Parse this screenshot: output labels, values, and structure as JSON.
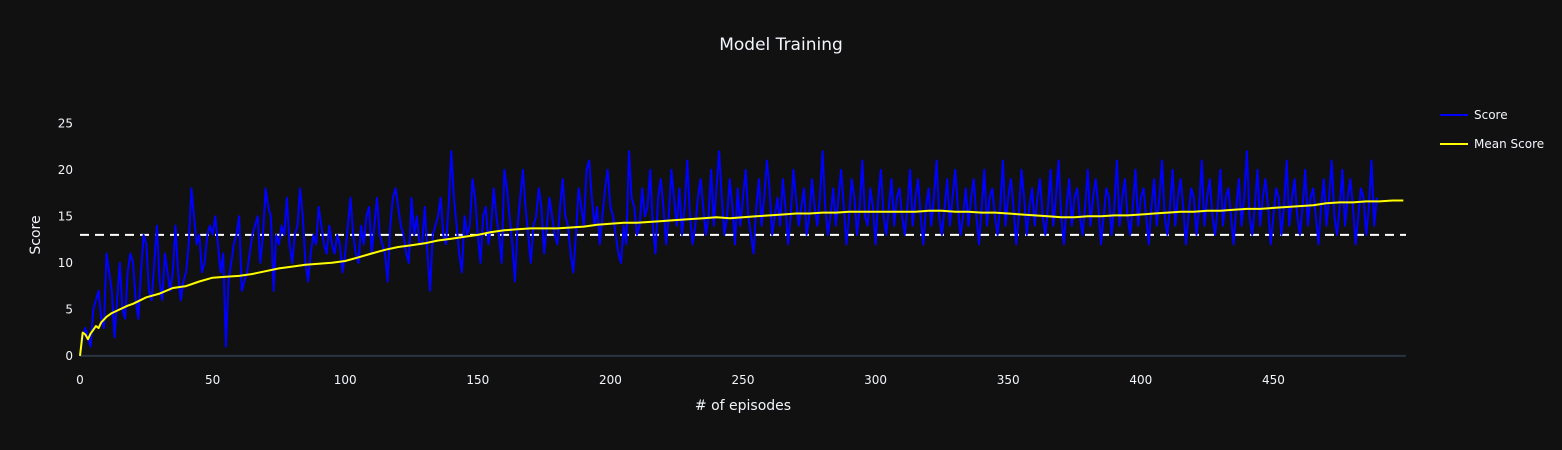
{
  "chart_data": {
    "type": "line",
    "title": "Model Training",
    "xlabel": "# of episodes",
    "ylabel": "Score",
    "xlim": [
      0,
      500
    ],
    "ylim": [
      -1.3,
      27.5
    ],
    "xticks": [
      0,
      50,
      100,
      150,
      200,
      250,
      300,
      350,
      400,
      450
    ],
    "yticks": [
      0,
      5,
      10,
      15,
      20,
      25
    ],
    "grid": false,
    "legend_position": "top-right",
    "threshold": {
      "value": 13,
      "style": "dashed",
      "color": "#ffffff"
    },
    "series": [
      {
        "name": "Score",
        "color": "#0000ff",
        "values": [
          0,
          2,
          3,
          2,
          1,
          5,
          6,
          7,
          4,
          3,
          11,
          9,
          7,
          2,
          6,
          10,
          5,
          4,
          9,
          11,
          10,
          6,
          4,
          9,
          13,
          12,
          7,
          6,
          10,
          14,
          8,
          6,
          11,
          9,
          7,
          9,
          14,
          9,
          6,
          8,
          9,
          12,
          18,
          15,
          12,
          13,
          9,
          10,
          13,
          14,
          13,
          15,
          12,
          9,
          11,
          1,
          8,
          10,
          12,
          13,
          15,
          7,
          8,
          9,
          11,
          13,
          14,
          15,
          10,
          13,
          18,
          16,
          15,
          7,
          13,
          12,
          14,
          13,
          17,
          12,
          10,
          13,
          14,
          18,
          15,
          10,
          8,
          11,
          13,
          12,
          16,
          14,
          12,
          11,
          14,
          12,
          11,
          13,
          12,
          9,
          11,
          14,
          17,
          13,
          11,
          10,
          14,
          12,
          15,
          16,
          11,
          14,
          17,
          13,
          12,
          11,
          8,
          14,
          17,
          18,
          16,
          14,
          13,
          11,
          10,
          17,
          13,
          15,
          12,
          12,
          16,
          11,
          7,
          13,
          14,
          15,
          17,
          13,
          12,
          16,
          22,
          17,
          14,
          11,
          9,
          15,
          13,
          14,
          19,
          17,
          13,
          10,
          15,
          16,
          12,
          14,
          18,
          15,
          13,
          10,
          20,
          18,
          15,
          12,
          8,
          14,
          17,
          20,
          16,
          13,
          10,
          14,
          15,
          18,
          16,
          11,
          14,
          17,
          15,
          13,
          12,
          16,
          19,
          15,
          14,
          11,
          9,
          13,
          18,
          16,
          14,
          20,
          21,
          17,
          14,
          16,
          12,
          15,
          18,
          20,
          16,
          15,
          13,
          11,
          10,
          14,
          12,
          22,
          17,
          16,
          13,
          14,
          18,
          15,
          16,
          20,
          14,
          11,
          17,
          19,
          16,
          12,
          15,
          20,
          17,
          14,
          18,
          13,
          16,
          21,
          15,
          12,
          14,
          17,
          19,
          16,
          13,
          15,
          20,
          14,
          18,
          22,
          17,
          13,
          15,
          19,
          16,
          12,
          18,
          14,
          17,
          20,
          15,
          13,
          11,
          16,
          19,
          14,
          17,
          21,
          18,
          13,
          15,
          17,
          14,
          19,
          16,
          12,
          15,
          20,
          17,
          14,
          16,
          18,
          13,
          15,
          19,
          16,
          14,
          17,
          22,
          16,
          13,
          15,
          18,
          14,
          17,
          20,
          16,
          12,
          15,
          19,
          17,
          13,
          16,
          21,
          15,
          14,
          18,
          16,
          12,
          17,
          20,
          15,
          13,
          16,
          19,
          14,
          17,
          18,
          15,
          13,
          16,
          20,
          14,
          17,
          19,
          15,
          12,
          16,
          18,
          14,
          17,
          21,
          15,
          13,
          16,
          19,
          14,
          17,
          20,
          16,
          13,
          15,
          18,
          14,
          17,
          19,
          15,
          12,
          16,
          20,
          14,
          17,
          18,
          15,
          13,
          16,
          21,
          14,
          17,
          19,
          16,
          12,
          15,
          20,
          17,
          13,
          16,
          18,
          14,
          17,
          19,
          15,
          13,
          16,
          20,
          14,
          17,
          21,
          15,
          12,
          16,
          19,
          14,
          17,
          18,
          15,
          13,
          16,
          20,
          14,
          17,
          19,
          16,
          12,
          15,
          18,
          17,
          13,
          16,
          21,
          14,
          17,
          19,
          15,
          13,
          16,
          20,
          14,
          17,
          18,
          15,
          12,
          16,
          19,
          14,
          17,
          21,
          15,
          13,
          16,
          20,
          14,
          17,
          19,
          16,
          12,
          15,
          18,
          17,
          13,
          16,
          21,
          14,
          17,
          19,
          15,
          13,
          16,
          20,
          14,
          17,
          18,
          15,
          12,
          16,
          19,
          14,
          17,
          22,
          15,
          13,
          16,
          20,
          14,
          17,
          19,
          16,
          12,
          15,
          18,
          17,
          13,
          16,
          21,
          14,
          17,
          19,
          15,
          13,
          16,
          20,
          14,
          17,
          18,
          15,
          12,
          16,
          19,
          14,
          17,
          21,
          15,
          13,
          16,
          20,
          14,
          17,
          19,
          16,
          12,
          15,
          18,
          17,
          13,
          16,
          21,
          14,
          17
        ]
      },
      {
        "name": "Mean Score",
        "color": "#ffff00",
        "x": [
          0,
          1,
          2,
          3,
          4,
          5,
          6,
          7,
          8,
          9,
          10,
          12,
          15,
          18,
          20,
          25,
          30,
          35,
          40,
          45,
          50,
          55,
          60,
          65,
          70,
          75,
          80,
          85,
          90,
          95,
          100,
          105,
          110,
          115,
          120,
          125,
          130,
          135,
          140,
          145,
          150,
          155,
          160,
          165,
          170,
          175,
          180,
          185,
          190,
          195,
          200,
          205,
          210,
          215,
          220,
          225,
          230,
          235,
          240,
          245,
          250,
          255,
          260,
          265,
          270,
          275,
          280,
          285,
          290,
          295,
          300,
          305,
          310,
          315,
          320,
          325,
          330,
          335,
          340,
          345,
          350,
          355,
          360,
          365,
          370,
          375,
          380,
          385,
          390,
          395,
          400,
          405,
          410,
          415,
          420,
          425,
          430,
          435,
          440,
          445,
          450,
          455,
          460,
          465,
          470,
          475,
          480,
          485,
          490,
          495,
          499
        ],
        "values": [
          0,
          2.5,
          2.3,
          1.8,
          2.4,
          2.8,
          3.2,
          3.0,
          3.6,
          3.9,
          4.2,
          4.6,
          5.0,
          5.4,
          5.6,
          6.3,
          6.7,
          7.3,
          7.5,
          8.0,
          8.4,
          8.5,
          8.6,
          8.8,
          9.1,
          9.4,
          9.6,
          9.8,
          9.9,
          10.0,
          10.2,
          10.6,
          11.0,
          11.4,
          11.7,
          11.9,
          12.1,
          12.4,
          12.6,
          12.8,
          13.0,
          13.3,
          13.5,
          13.6,
          13.7,
          13.7,
          13.7,
          13.8,
          13.9,
          14.1,
          14.2,
          14.3,
          14.3,
          14.4,
          14.5,
          14.6,
          14.7,
          14.8,
          14.9,
          14.8,
          14.9,
          15.0,
          15.1,
          15.2,
          15.3,
          15.3,
          15.4,
          15.4,
          15.5,
          15.5,
          15.5,
          15.5,
          15.5,
          15.5,
          15.6,
          15.6,
          15.5,
          15.5,
          15.4,
          15.4,
          15.3,
          15.2,
          15.1,
          15.0,
          14.9,
          14.9,
          15.0,
          15.0,
          15.1,
          15.1,
          15.2,
          15.3,
          15.4,
          15.5,
          15.5,
          15.6,
          15.6,
          15.7,
          15.8,
          15.8,
          15.9,
          16.0,
          16.1,
          16.2,
          16.4,
          16.5,
          16.5,
          16.6,
          16.6,
          16.7,
          16.7
        ]
      }
    ]
  }
}
